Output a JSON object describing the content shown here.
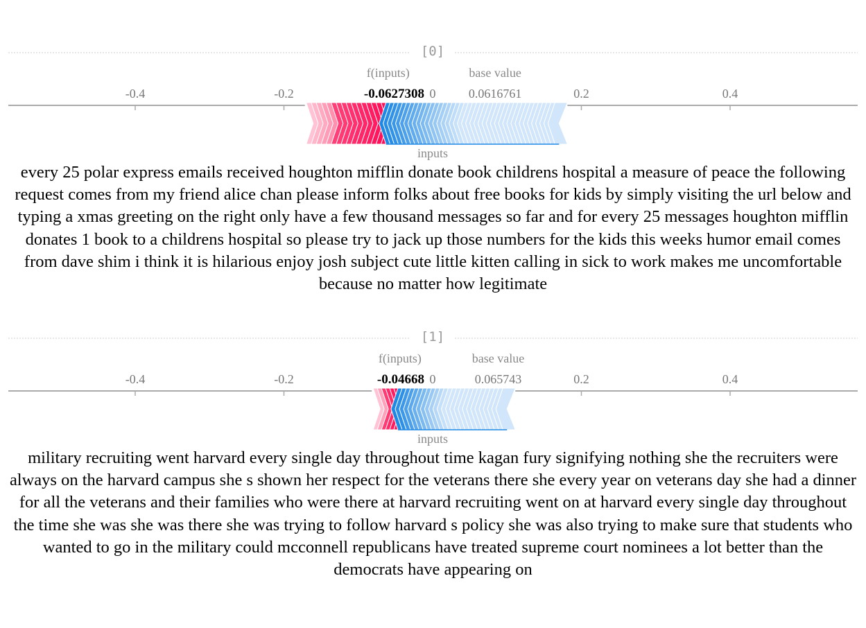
{
  "chart_data": [
    {
      "type": "force",
      "index_label": "[0]",
      "xlim": [
        -0.5,
        0.55
      ],
      "ticks": [
        "-0.4",
        "-0.2",
        "0",
        "0.2",
        "0.4"
      ],
      "tick_values": [
        -0.4,
        -0.2,
        0,
        0.2,
        0.4
      ],
      "fx_label": "f(inputs)",
      "fx_value": "-0.0627308",
      "fx_value_num": -0.0627308,
      "base_label": "base value",
      "base_value": "0.0616761",
      "base_value_num": 0.0616761,
      "inputs_label": "inputs",
      "positive_range": [
        -0.17,
        -0.0627308
      ],
      "negative_range": [
        -0.0627308,
        0.17
      ],
      "positive_colors": [
        "#ff0d57",
        "#ffc3d5"
      ],
      "negative_colors": [
        "#1e88e5",
        "#d1e6fa"
      ],
      "text": "every 25 polar express emails received houghton mifflin donate book childrens hospital a measure of peace the following request comes from my friend alice chan please inform folks about free books for kids by simply visiting the url below and typing a xmas greeting on the right only have a few thousand messages so far and for every 25 messages houghton mifflin donates 1 book to a childrens hospital so please try to jack up those numbers for the kids this weeks humor email comes from dave shim i think it is hilarious enjoy josh subject cute little kitten calling in sick to work makes me uncomfortable because no matter how legitimate"
    },
    {
      "type": "force",
      "index_label": "[1]",
      "xlim": [
        -0.5,
        0.55
      ],
      "ticks": [
        "-0.4",
        "-0.2",
        "0",
        "0.2",
        "0.4"
      ],
      "tick_values": [
        -0.4,
        -0.2,
        0,
        0.2,
        0.4
      ],
      "fx_label": "f(inputs)",
      "fx_value": "-0.04668",
      "fx_value_num": -0.04668,
      "base_label": "base value",
      "base_value": "0.065743",
      "base_value_num": 0.065743,
      "inputs_label": "inputs",
      "positive_range": [
        -0.08,
        -0.04668
      ],
      "negative_range": [
        -0.04668,
        0.1
      ],
      "positive_colors": [
        "#ff0d57",
        "#ffc3d5"
      ],
      "negative_colors": [
        "#1e88e5",
        "#d1e6fa"
      ],
      "text": "military recruiting went harvard every single day throughout time kagan fury signifying nothing she the recruiters were always on the harvard campus she s shown her respect for the veterans there she every year on veterans day she had a dinner for all the veterans and their families who were there at harvard recruiting went on at harvard every single day throughout the time she was she was there she was trying to follow harvard s policy she was also trying to make sure that students who wanted to go in the military could mcconnell republicans have treated supreme court nominees a lot better than the democrats have appearing on"
    }
  ]
}
